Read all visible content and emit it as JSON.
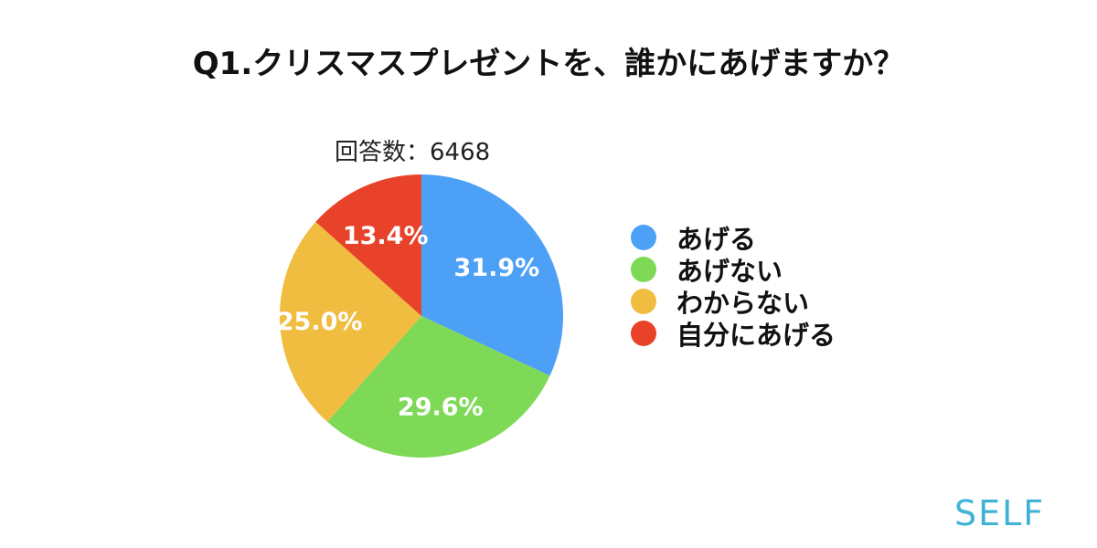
{
  "title": "Q1.クリスマスプレゼントを、誰かにあげますか？",
  "response_count": "回答数：6468",
  "brand": "SELF",
  "chart_data": {
    "type": "pie",
    "title": "Q1.クリスマスプレゼントを、誰かにあげますか？",
    "categories": [
      "あげる",
      "あげない",
      "わからない",
      "自分にあげる"
    ],
    "values": [
      31.9,
      29.6,
      25.0,
      13.4
    ],
    "data_labels": [
      "31.9%",
      "29.6%",
      "25.0%",
      "13.4%"
    ],
    "colors": [
      "#4ca0f5",
      "#7ed957",
      "#f0bd40",
      "#e8432a"
    ],
    "start": "12 o'clock",
    "direction": "clockwise",
    "legend_position": "right"
  }
}
